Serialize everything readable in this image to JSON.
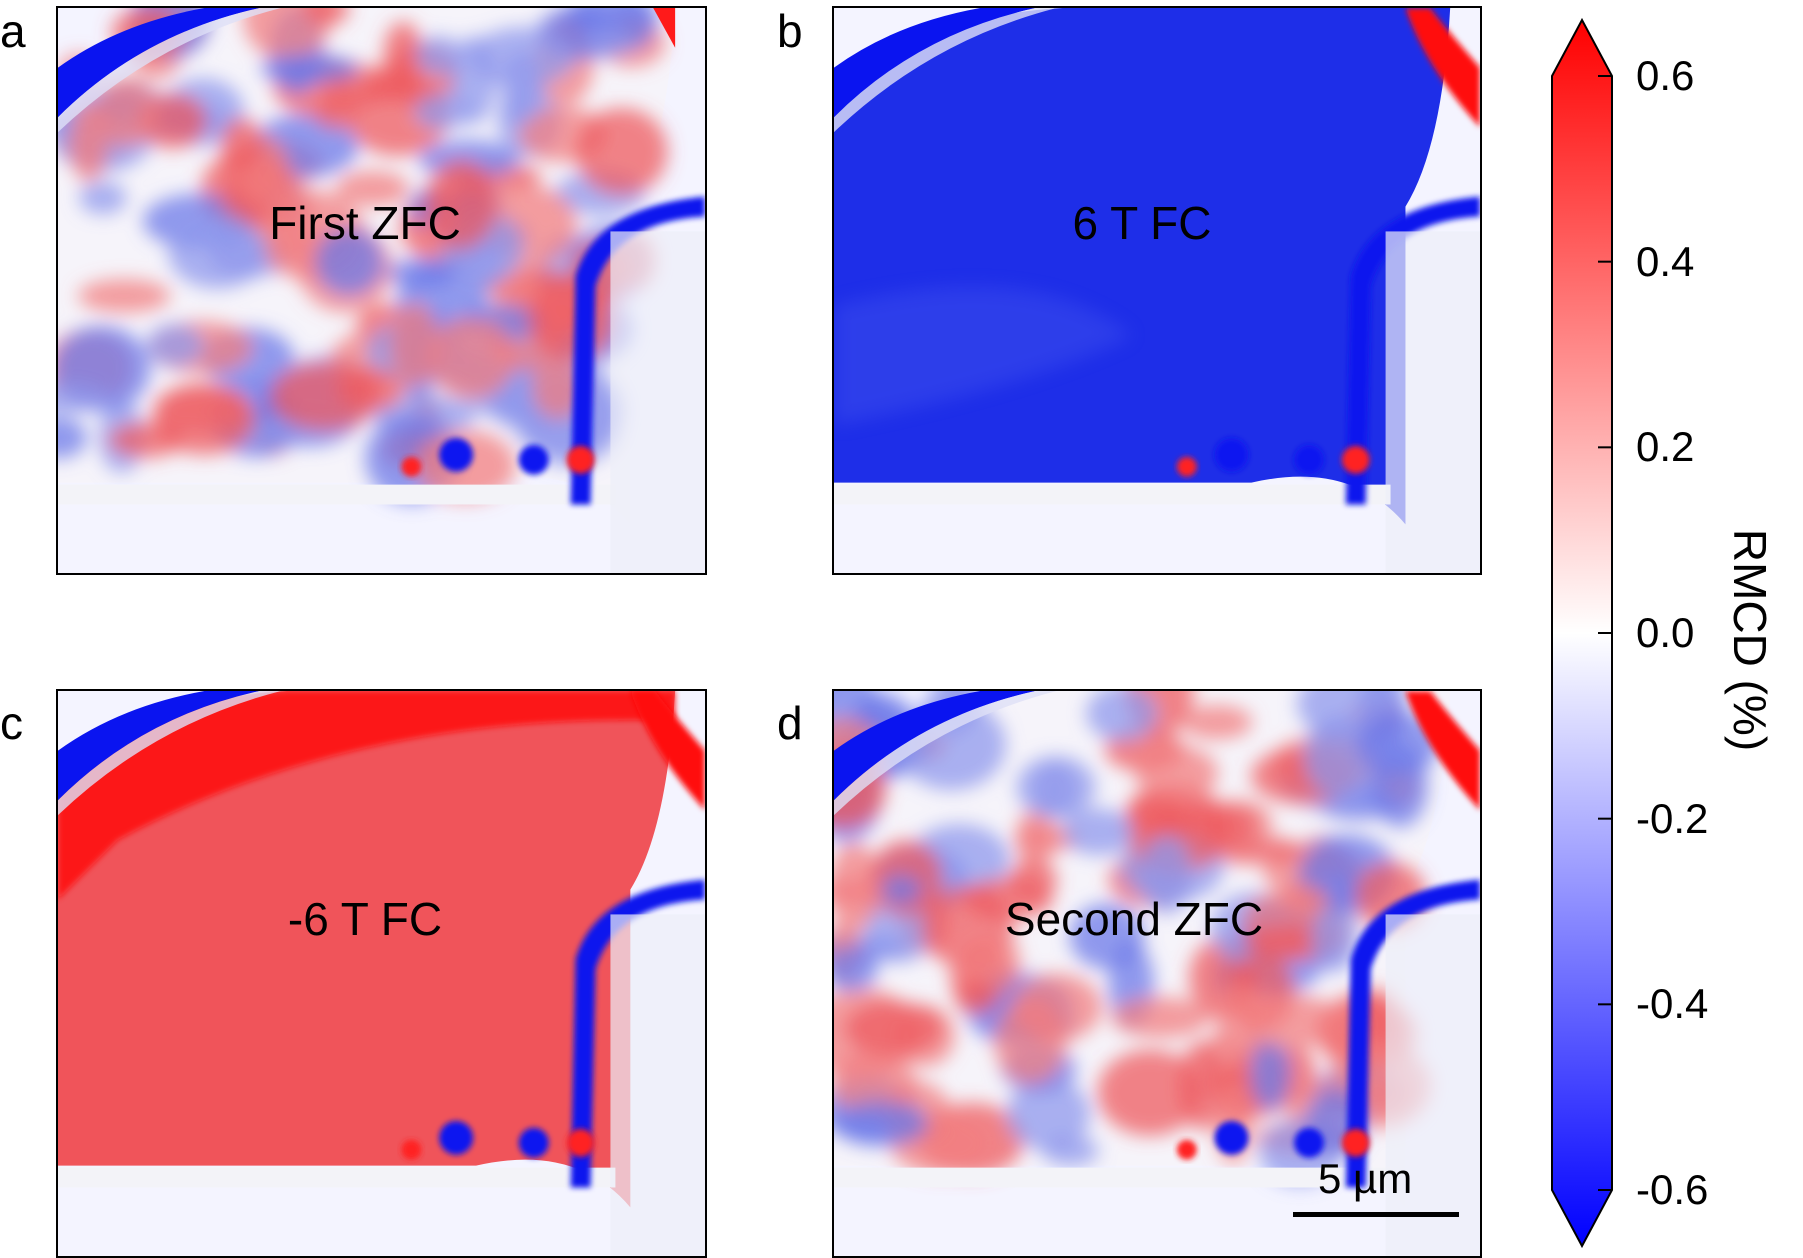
{
  "panels": [
    {
      "letter": "a",
      "label": "First ZFC",
      "state": "mixed"
    },
    {
      "letter": "b",
      "label": "6 T FC",
      "state": "negative"
    },
    {
      "letter": "c",
      "label": "-6 T FC",
      "state": "positive"
    },
    {
      "letter": "d",
      "label": "Second ZFC",
      "state": "mixed"
    }
  ],
  "colorbar": {
    "label": "RMCD (%)",
    "min": -0.6,
    "max": 0.6,
    "ticks": [
      "0.6",
      "0.4",
      "0.2",
      "0.0",
      "-0.2",
      "-0.4",
      "-0.6"
    ],
    "colors": {
      "max": "#ff0000",
      "mid": "#ffffff",
      "min": "#0000ff"
    }
  },
  "scalebar": {
    "text": "5 µm"
  }
}
